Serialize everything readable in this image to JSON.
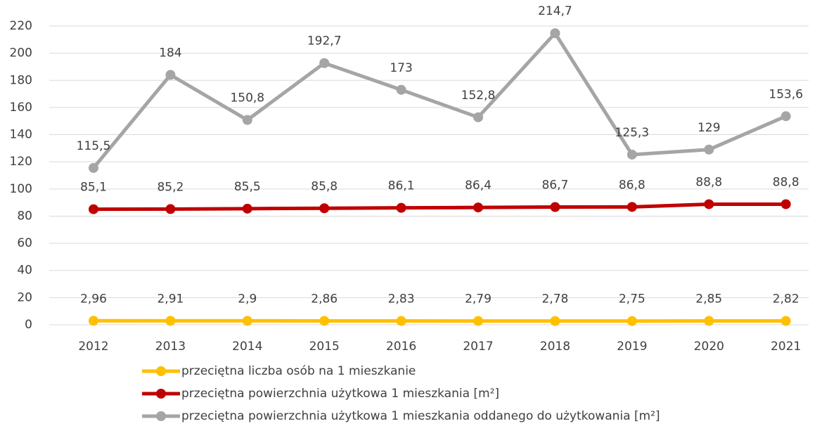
{
  "chart_data": {
    "type": "line",
    "categories": [
      "2012",
      "2013",
      "2014",
      "2015",
      "2016",
      "2017",
      "2018",
      "2019",
      "2020",
      "2021"
    ],
    "series": [
      {
        "name": "przeciętna liczba osób na 1 mieszkanie",
        "color": "#ffc000",
        "values": [
          2.96,
          2.91,
          2.9,
          2.86,
          2.83,
          2.79,
          2.78,
          2.75,
          2.85,
          2.82
        ],
        "value_labels": [
          "2,96",
          "2,91",
          "2,9",
          "2,86",
          "2,83",
          "2,79",
          "2,78",
          "2,75",
          "2,85",
          "2,82"
        ]
      },
      {
        "name": "przeciętna powierzchnia użytkowa 1 mieszkania  [m²]",
        "color": "#c00000",
        "values": [
          85.1,
          85.2,
          85.5,
          85.8,
          86.1,
          86.4,
          86.7,
          86.8,
          88.8,
          88.8
        ],
        "value_labels": [
          "85,1",
          "85,2",
          "85,5",
          "85,8",
          "86,1",
          "86,4",
          "86,7",
          "86,8",
          "88,8",
          "88,8"
        ]
      },
      {
        "name": "przeciętna powierzchnia użytkowa 1 mieszkania oddanego do użytkowania [m²]",
        "color": "#a5a5a5",
        "values": [
          115.5,
          184,
          150.8,
          192.7,
          173,
          152.8,
          214.7,
          125.3,
          129,
          153.6
        ],
        "value_labels": [
          "115,5",
          "184",
          "150,8",
          "192,7",
          "173",
          "152,8",
          "214,7",
          "125,3",
          "129",
          "153,6"
        ]
      }
    ],
    "ylim": [
      0,
      220
    ],
    "yticks": [
      0,
      20,
      40,
      60,
      80,
      100,
      120,
      140,
      160,
      180,
      200,
      220
    ],
    "grid": true
  }
}
